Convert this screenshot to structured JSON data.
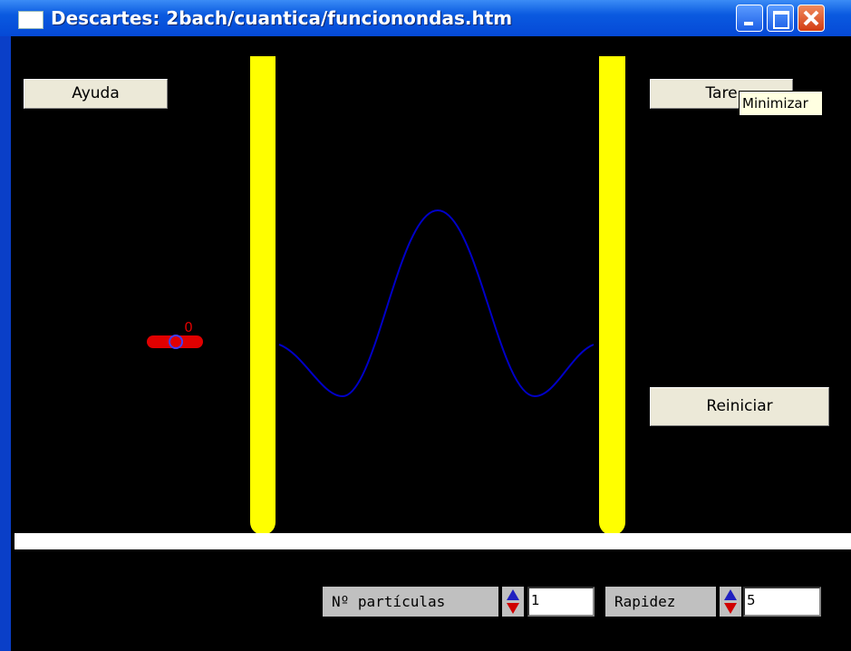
{
  "window": {
    "title": "Descartes: 2bach/cuantica/funcionondas.htm"
  },
  "buttons": {
    "help": "Ayuda",
    "tasks": "Tare",
    "reset": "Reiniciar"
  },
  "tooltip": "Minimizar",
  "particle_label": "0",
  "controls": [
    {
      "label": "Nº partículas",
      "value": "1"
    },
    {
      "label": "Rapidez",
      "value": "5"
    }
  ]
}
